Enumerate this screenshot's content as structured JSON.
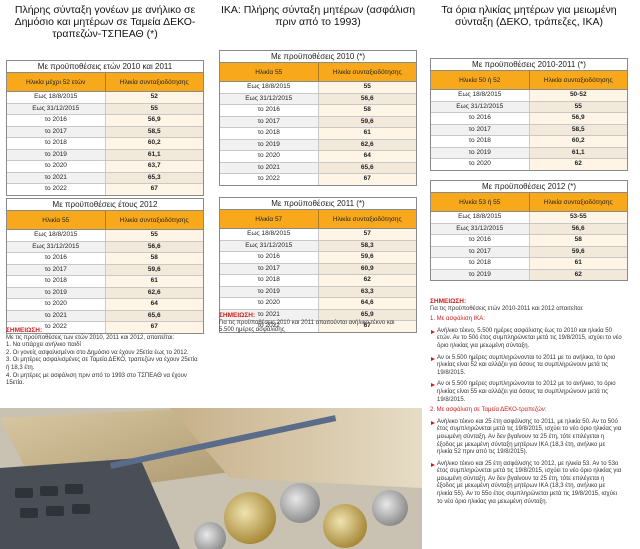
{
  "columns": [
    {
      "title": "Πλήρης σύνταξη γονέων με ανήλικο σε Δημόσιο και μητέρων σε Ταμεία ΔΕΚΟ-τραπεζών-ΤΣΠΕΑΘ (*)",
      "tables": [
        {
          "title": "Με προϋποθέσεις ετών 2010 και 2011",
          "headers": [
            "Ηλικία μέχρι 52 ετών",
            "Ηλικία συνταξιοδότησης"
          ],
          "rows": [
            [
              "Εως 18/8/2015",
              "52"
            ],
            [
              "Εως 31/12/2015",
              "55"
            ],
            [
              "το 2016",
              "56,9"
            ],
            [
              "το 2017",
              "58,5"
            ],
            [
              "το 2018",
              "60,2"
            ],
            [
              "το 2019",
              "61,1"
            ],
            [
              "το 2020",
              "63,7"
            ],
            [
              "το 2021",
              "65,3"
            ],
            [
              "το 2022",
              "67"
            ]
          ]
        },
        {
          "title": "Με προϋποθέσεις έτους 2012",
          "headers": [
            "Ηλικία 55",
            "Ηλικία συνταξιοδότησης"
          ],
          "rows": [
            [
              "Εως 18/8/2015",
              "55"
            ],
            [
              "Εως 31/12/2015",
              "56,6"
            ],
            [
              "το 2016",
              "58"
            ],
            [
              "το 2017",
              "59,6"
            ],
            [
              "το 2018",
              "61"
            ],
            [
              "το 2019",
              "62,6"
            ],
            [
              "το 2020",
              "64"
            ],
            [
              "το 2021",
              "65,6"
            ],
            [
              "το 2022",
              "67"
            ]
          ]
        }
      ],
      "note": {
        "heading": "ΣΗΜΕΙΩΣΗ:",
        "intro": "Με τις προϋποθέσεις των ετών 2010, 2011 και 2012, απαιτείται:",
        "items": [
          "1. Να υπάρχει ανήλικο παιδί",
          "2. Οι γονείς ασφαλισμένοι στο Δημόσιο να έχουν 25ετία έως το 2012.",
          "3. Οι μητέρες ασφαλισμένες σε Ταμεία ΔΕΚΟ, τραπεζών να έχουν 25ετία ή 18,3 έτη.",
          "4. Οι μητέρες με ασφάλιση πριν από το 1993 στο ΤΣΠΕΑΘ να έχουν 15ετία."
        ]
      }
    },
    {
      "title": "ΙΚΑ: Πλήρης σύνταξη μητέρων (ασφάλιση πριν από το 1993)",
      "tables": [
        {
          "title": "Με προϋποθέσεις 2010 (*)",
          "headers": [
            "Ηλικία 55",
            "Ηλικία συνταξιοδότησης"
          ],
          "rows": [
            [
              "Εως 18/8/2015",
              "55"
            ],
            [
              "Εως 31/12/2015",
              "56,6"
            ],
            [
              "το 2016",
              "58"
            ],
            [
              "το 2017",
              "59,6"
            ],
            [
              "το 2018",
              "61"
            ],
            [
              "το 2019",
              "62,6"
            ],
            [
              "το 2020",
              "64"
            ],
            [
              "το 2021",
              "65,6"
            ],
            [
              "το 2022",
              "67"
            ]
          ]
        },
        {
          "title": "Με προϋποθέσεις 2011 (*)",
          "headers": [
            "Ηλικία 57",
            "Ηλικία συνταξιοδότησης"
          ],
          "rows": [
            [
              "Εως 18/8/2015",
              "57"
            ],
            [
              "Εως 31/12/2015",
              "58,3"
            ],
            [
              "το 2016",
              "59,6"
            ],
            [
              "το 2017",
              "60,9"
            ],
            [
              "το 2018",
              "62"
            ],
            [
              "το 2019",
              "63,3"
            ],
            [
              "το 2020",
              "64,6"
            ],
            [
              "το 2021",
              "65,9"
            ],
            [
              "το 2022",
              "67"
            ]
          ]
        }
      ],
      "note": {
        "heading": "ΣΗΜΕΙΩΣΗ:",
        "intro": "Για τις προϋποθέσεις 2010 και 2011 απαιτούνται ανήλικο τέκνο και 5.500 ημέρες ασφάλισης"
      }
    },
    {
      "title": "Τα όρια ηλικίας μητέρων για μειωμένη σύνταξη (ΔΕΚΟ, τράπεζες, ΙΚΑ)",
      "tables": [
        {
          "title": "Με προϋποθέσεις 2010-2011 (*)",
          "headers": [
            "Ηλικία 50 ή 52",
            "Ηλικία συνταξιοδότησης"
          ],
          "rows": [
            [
              "Εως 18/8/2015",
              "50-52"
            ],
            [
              "Εως 31/12/2015",
              "55"
            ],
            [
              "το 2016",
              "56,9"
            ],
            [
              "το 2017",
              "58,5"
            ],
            [
              "το 2018",
              "60,2"
            ],
            [
              "το 2019",
              "61,1"
            ],
            [
              "το 2020",
              "62"
            ]
          ]
        },
        {
          "title": "Με προϋποθέσεις 2012 (*)",
          "headers": [
            "Ηλικία 53 ή 55",
            "Ηλικία συνταξιοδότησης"
          ],
          "rows": [
            [
              "Εως 18/8/2015",
              "53-55"
            ],
            [
              "Εως 31/12/2015",
              "56,6"
            ],
            [
              "το 2016",
              "58"
            ],
            [
              "το 2017",
              "59,6"
            ],
            [
              "το 2018",
              "61"
            ],
            [
              "το 2019",
              "62"
            ]
          ]
        }
      ],
      "note": {
        "heading": "ΣΗΜΕΙΩΣΗ:",
        "intro": "Για τις προϋποθέσεις ετών 2010-2011 και 2012 απαιτείται:",
        "sections": [
          {
            "title": "1. Με ασφάλιση ΙΚΑ:",
            "bullets": [
              "Ανήλικο τέκνο, 5.500 ημέρες ασφάλισης έως το 2010 και ηλικία 50 ετών. Αν το 50ό έτος συμπληρώνεται μετά τις 19/8/2015, ισχύει το νέο όριο ηλικίας για μειωμένη σύνταξη.",
              "Αν οι 5.500 ημέρες συμπληρώνονται το 2011 με το ανήλικο, το όριο ηλικίας είναι 52 και αλλάζει για όσους τα συμπληρώνουν μετά τις 19/8/2015.",
              "Αν οι 5.500 ημέρες συμπληρώνονται το 2012 με το ανήλικο, το όριο ηλικίας είναι 55 και αλλάζει για όσους τα συμπληρώνουν μετά τις 19/8/2015."
            ]
          },
          {
            "title": "2. Με ασφάλιση σε Ταμεία ΔΕΚΟ-τραπεζών:",
            "bullets": [
              "Ανήλικο τέκνο και 25 έτη ασφάλισης το 2011, με ηλικία 50. Αν το 50ό έτος συμπληρώνεται μετά τις 19/8/2015, ισχύει το νέο όριο ηλικίας για μειωμένη σύνταξη. Αν δεν βγαίνουν τα 25 έτη, τότε επιλέγεται η έξοδος με μειωμένη σύνταξη μητέρων ΙΚΑ (18,3 έτη, ανήλικο με ηλικία 52 πριν από τις 19/8/2015).",
              "Ανήλικο τέκνο και 25 έτη ασφάλισης το 2012, με ηλικία 53. Αν το 53ο έτος συμπληρώνεται μετά τις 19/8/2015, ισχύει το νέο όριο ηλικίας για μειωμένη σύνταξη. Αν δεν βγαίνουν τα 25 έτη, τότε επιλέγεται η έξοδος με μειωμένη σύνταξη μητέρων ΙΚΑ (18,3 έτη, ανήλικο με ηλικία 55). Αν το 55ο έτος συμπληρώνεται μετά τις 19/8/2015, ισχύει το νέο όριο ηλικίας για μειωμένη σύνταξη."
            ]
          }
        ]
      }
    }
  ]
}
